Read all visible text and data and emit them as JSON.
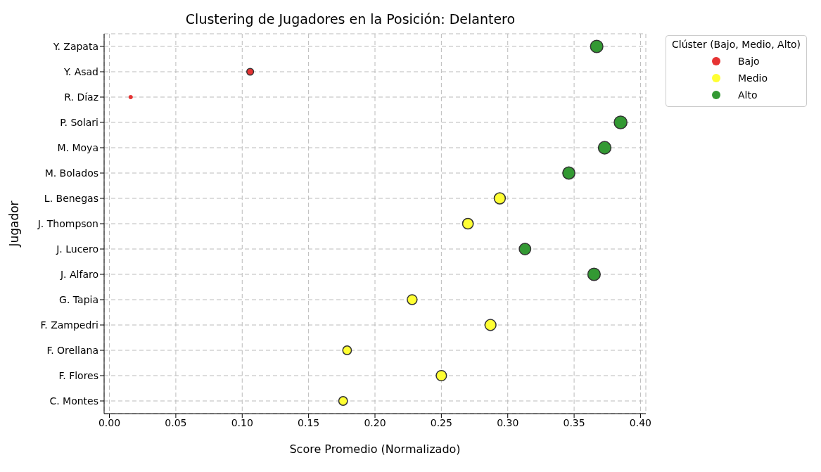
{
  "chart_data": {
    "type": "bubble",
    "title": "Clustering de Jugadores en la Posición: Delantero",
    "xlabel": "Score Promedio (Normalizado)",
    "ylabel": "Jugador",
    "legend_title": "Clúster (Bajo, Medio, Alto)",
    "orientation": "horizontal",
    "categories": [
      "Y. Zapata",
      "Y. Asad",
      "R. Díaz",
      "P. Solari",
      "M. Moya",
      "M. Bolados",
      "L. Benegas",
      "J. Thompson",
      "J. Lucero",
      "J. Alfaro",
      "G. Tapia",
      "F. Zampedri",
      "F. Orellana",
      "F. Flores",
      "C. Montes"
    ],
    "series": [
      {
        "name": "Bajo",
        "color": "#e63333",
        "values": [
          null,
          0.106,
          0.016,
          null,
          null,
          null,
          null,
          null,
          null,
          null,
          null,
          null,
          null,
          null,
          null
        ],
        "sizes": [
          null,
          0.28,
          0.08,
          null,
          null,
          null,
          null,
          null,
          null,
          null,
          null,
          null,
          null,
          null,
          null
        ]
      },
      {
        "name": "Medio",
        "color": "#ffff33",
        "values": [
          null,
          null,
          null,
          null,
          null,
          null,
          0.294,
          0.27,
          null,
          null,
          0.228,
          0.287,
          0.179,
          0.25,
          0.176
        ],
        "sizes": [
          null,
          null,
          null,
          null,
          null,
          null,
          0.76,
          0.7,
          null,
          null,
          0.59,
          0.75,
          0.46,
          0.65,
          0.46
        ]
      },
      {
        "name": "Alto",
        "color": "#339933",
        "values": [
          0.367,
          null,
          null,
          0.385,
          0.373,
          0.346,
          null,
          null,
          0.313,
          0.365,
          null,
          null,
          null,
          null,
          null
        ],
        "sizes": [
          0.95,
          null,
          null,
          1,
          0.97,
          0.9,
          null,
          null,
          0.81,
          0.95,
          null,
          null,
          null,
          null,
          null
        ]
      }
    ],
    "xlim": [
      -0.004,
      0.404
    ],
    "xticks": [
      {
        "value": 0,
        "label": "0.00"
      },
      0.05,
      {
        "value": 0.1,
        "label": "0.10"
      },
      0.15,
      {
        "value": 0.2,
        "label": "0.20"
      },
      0.25,
      {
        "value": 0.3,
        "label": "0.30"
      },
      0.35,
      {
        "value": 0.4,
        "label": "0.40"
      }
    ],
    "grid": true,
    "legend": "top right",
    "marker": "circle"
  }
}
